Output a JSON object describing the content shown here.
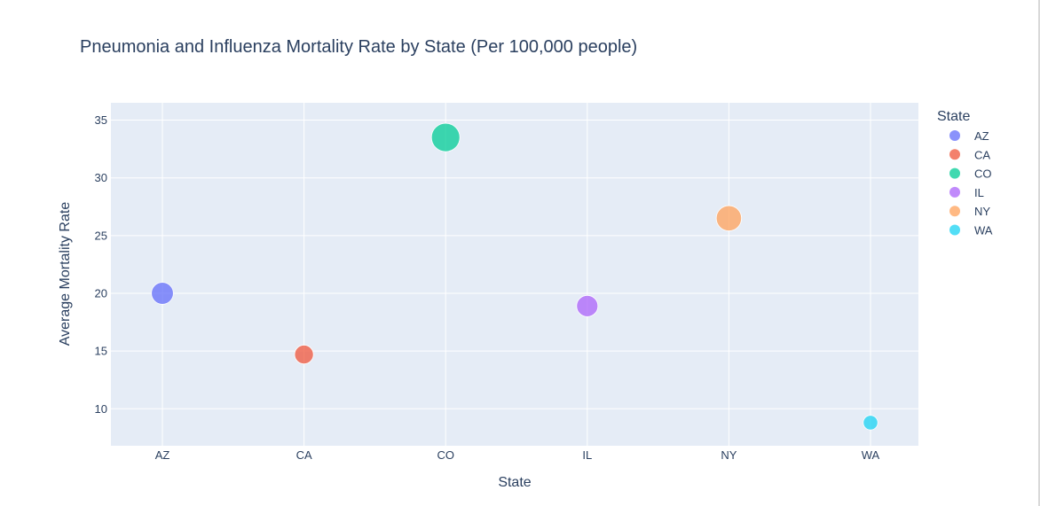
{
  "chart_data": {
    "type": "scatter",
    "title": "Pneumonia and Influenza Mortality Rate by State (Per 100,000 people)",
    "xlabel": "State",
    "ylabel": "Average Mortality Rate",
    "categories": [
      "AZ",
      "CA",
      "CO",
      "IL",
      "NY",
      "WA"
    ],
    "ylim": [
      6.8,
      36.5
    ],
    "yticks": [
      10,
      15,
      20,
      25,
      30,
      35
    ],
    "grid": true,
    "legend": {
      "title": "State",
      "placement": "right"
    },
    "series": [
      {
        "name": "AZ",
        "x": "AZ",
        "y": 20.0,
        "color": "#636efa"
      },
      {
        "name": "CA",
        "x": "CA",
        "y": 14.7,
        "color": "#ef553b"
      },
      {
        "name": "CO",
        "x": "CO",
        "y": 33.5,
        "color": "#00cc96"
      },
      {
        "name": "IL",
        "x": "IL",
        "y": 18.9,
        "color": "#ab63fa"
      },
      {
        "name": "NY",
        "x": "NY",
        "y": 26.5,
        "color": "#ffa15a"
      },
      {
        "name": "WA",
        "x": "WA",
        "y": 8.8,
        "color": "#19d3f3"
      }
    ]
  }
}
